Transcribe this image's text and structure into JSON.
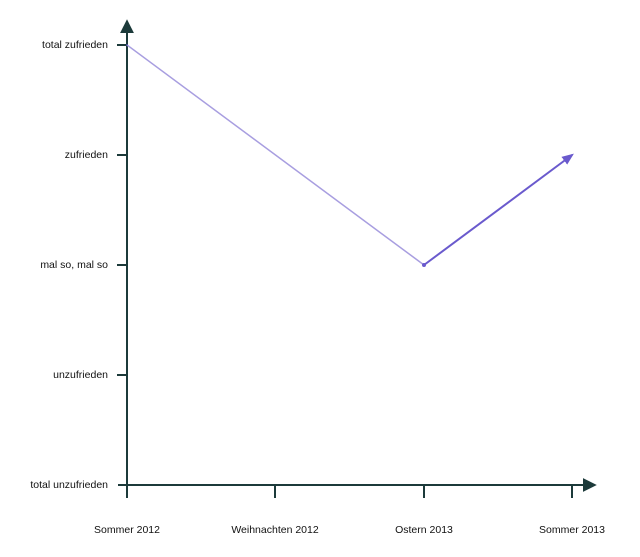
{
  "chart_data": {
    "type": "line",
    "title": "",
    "xlabel": "",
    "ylabel": "",
    "categories": [
      "Sommer 2012",
      "Weihnachten 2012",
      "Ostern 2013",
      "Sommer 2013"
    ],
    "y_levels": [
      "total unzufrieden",
      "unzufrieden",
      "mal so, mal so",
      "zufrieden",
      "total zufrieden"
    ],
    "ylim": [
      0,
      4
    ],
    "grid": false,
    "series": [
      {
        "color_start": "#a89ee0",
        "color_end": "#6a5acd",
        "points": [
          {
            "x": "Sommer 2012",
            "y": "total zufrieden"
          },
          {
            "x": "Ostern 2013",
            "y": "mal so, mal so"
          },
          {
            "x": "Sommer 2013",
            "y": "zufrieden"
          }
        ]
      }
    ]
  }
}
